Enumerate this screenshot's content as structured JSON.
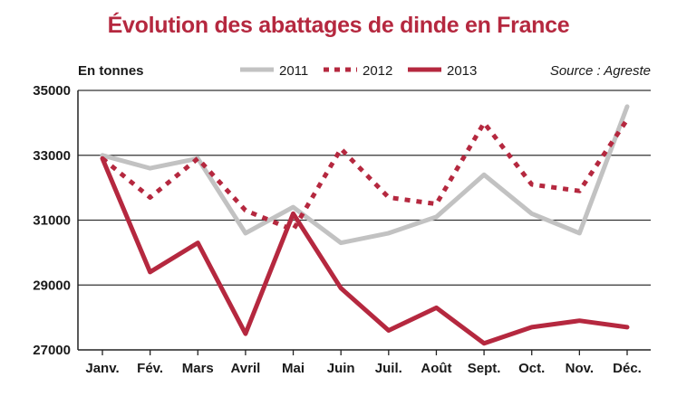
{
  "chart_data": {
    "type": "line",
    "title": "Évolution des abattages de dinde en France",
    "unit_label": "En tonnes",
    "source": "Source : Agreste",
    "categories": [
      "Janv.",
      "Fév.",
      "Mars",
      "Avril",
      "Mai",
      "Juin",
      "Juil.",
      "Août",
      "Sept.",
      "Oct.",
      "Nov.",
      "Déc."
    ],
    "yticks": [
      27000,
      29000,
      31000,
      33000,
      35000
    ],
    "ylim": [
      27000,
      35000
    ],
    "grid": true,
    "legend_position": "top",
    "series": [
      {
        "name": "2011",
        "style": "solid",
        "color": "#c2c2c2",
        "values": [
          33000,
          32600,
          32900,
          30600,
          31400,
          30300,
          30600,
          31100,
          32400,
          31200,
          30600,
          34500
        ]
      },
      {
        "name": "2012",
        "style": "dotted",
        "color": "#b5283f",
        "values": [
          32900,
          31700,
          32900,
          31300,
          30700,
          33200,
          31700,
          31500,
          34000,
          32100,
          31900,
          34100
        ]
      },
      {
        "name": "2013",
        "style": "solid",
        "color": "#b5283f",
        "values": [
          32900,
          29400,
          30300,
          27500,
          31200,
          28900,
          27600,
          28300,
          27200,
          27700,
          27900,
          27700
        ]
      }
    ]
  }
}
